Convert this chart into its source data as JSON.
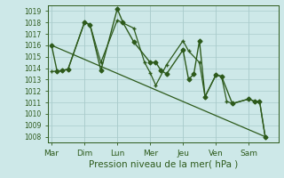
{
  "background_color": "#cde8e8",
  "grid_color": "#aacccc",
  "line_color": "#2d5a1b",
  "xlabel": "Pression niveau de la mer( hPa )",
  "ylim": [
    1007.5,
    1019.5
  ],
  "yticks": [
    1008,
    1009,
    1010,
    1011,
    1012,
    1013,
    1014,
    1015,
    1016,
    1017,
    1018,
    1019
  ],
  "day_labels": [
    "Mar",
    "Dim",
    "Lun",
    "Mer",
    "Jeu",
    "Ven",
    "Sam"
  ],
  "day_positions": [
    0,
    1,
    2,
    3,
    4,
    5,
    6
  ],
  "num_days": 7,
  "series1": {
    "x": [
      0.0,
      0.17,
      0.33,
      0.5,
      1.0,
      1.17,
      1.5,
      2.0,
      2.17,
      2.5,
      3.0,
      3.17,
      3.33,
      3.5,
      4.0,
      4.17,
      4.33,
      4.5,
      4.67,
      5.0,
      5.17,
      5.5,
      6.0,
      6.17,
      6.33,
      6.5
    ],
    "y": [
      1016.0,
      1013.7,
      1013.8,
      1013.9,
      1018.0,
      1017.8,
      1013.8,
      1019.2,
      1018.0,
      1016.3,
      1014.5,
      1014.5,
      1013.8,
      1013.5,
      1015.6,
      1013.0,
      1013.5,
      1016.4,
      1011.5,
      1013.4,
      1013.3,
      1010.9,
      1011.3,
      1011.1,
      1011.1,
      1008.0
    ],
    "marker": "D",
    "markersize": 2.5,
    "linewidth": 1.0
  },
  "series2": {
    "x": [
      0.0,
      6.5
    ],
    "y": [
      1016.0,
      1008.0
    ],
    "marker": null,
    "markersize": 0,
    "linewidth": 0.9
  },
  "series3": {
    "x": [
      0.0,
      0.33,
      0.5,
      1.0,
      1.17,
      1.5,
      2.0,
      2.5,
      2.83,
      3.0,
      3.17,
      3.5,
      4.0,
      4.17,
      4.5,
      4.67,
      5.0,
      5.17,
      5.33,
      5.5,
      6.0,
      6.17,
      6.33,
      6.5
    ],
    "y": [
      1013.7,
      1013.8,
      1013.9,
      1018.0,
      1017.8,
      1014.5,
      1018.2,
      1017.5,
      1014.5,
      1013.6,
      1012.5,
      1014.3,
      1016.4,
      1015.5,
      1014.5,
      1011.5,
      1013.4,
      1013.3,
      1011.1,
      1010.9,
      1011.3,
      1011.1,
      1011.1,
      1008.0
    ],
    "marker": "+",
    "markersize": 3.5,
    "linewidth": 0.9
  }
}
